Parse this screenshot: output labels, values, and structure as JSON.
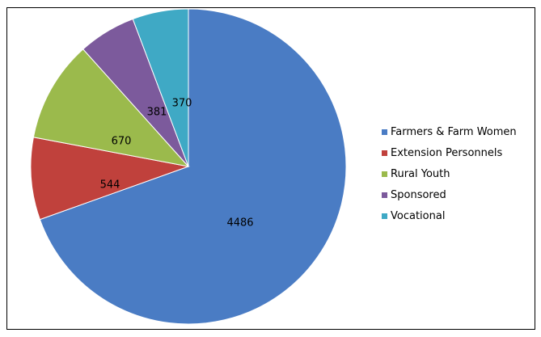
{
  "chart_data": {
    "type": "pie",
    "categories": [
      "Farmers & Farm Women",
      "Extension Personnels",
      "Rural Youth",
      "Sponsored",
      "Vocational"
    ],
    "values": [
      4486,
      544,
      670,
      381,
      370
    ],
    "colors": [
      "#4a7cc4",
      "#c0413c",
      "#9bba4c",
      "#7c5a9c",
      "#3fa9c5"
    ],
    "data_labels": [
      "4486",
      "544",
      "670",
      "381",
      "370"
    ],
    "legend_position": "right",
    "start_angle_deg": 0,
    "direction": "clockwise"
  }
}
